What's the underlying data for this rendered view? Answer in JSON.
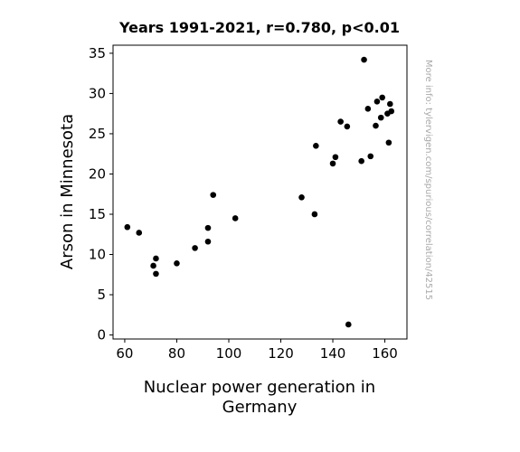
{
  "chart_data": {
    "type": "scatter",
    "title": "Years 1991-2021, r=0.780, p<0.01",
    "xlabel_lines": [
      "Nuclear power generation in",
      "Germany"
    ],
    "ylabel": "Arson in Minnesota",
    "side_note": "More info: tylervigen.com/spurious/correlation/42515",
    "xlim": [
      55.5,
      168.5
    ],
    "ylim": [
      -0.5,
      36
    ],
    "x_ticks": [
      60,
      80,
      100,
      120,
      140,
      160
    ],
    "y_ticks": [
      0,
      5,
      10,
      15,
      20,
      25,
      30,
      35
    ],
    "grid": false,
    "point_color": "#000000",
    "points": [
      {
        "x": 61.0,
        "y": 13.4
      },
      {
        "x": 65.5,
        "y": 12.7
      },
      {
        "x": 71.0,
        "y": 8.6
      },
      {
        "x": 72.0,
        "y": 9.5
      },
      {
        "x": 72.0,
        "y": 7.6
      },
      {
        "x": 80.0,
        "y": 8.9
      },
      {
        "x": 87.0,
        "y": 10.8
      },
      {
        "x": 92.0,
        "y": 11.6
      },
      {
        "x": 92.0,
        "y": 13.3
      },
      {
        "x": 94.0,
        "y": 17.4
      },
      {
        "x": 102.5,
        "y": 14.5
      },
      {
        "x": 128.0,
        "y": 17.1
      },
      {
        "x": 133.0,
        "y": 15.0
      },
      {
        "x": 133.5,
        "y": 23.5
      },
      {
        "x": 140.0,
        "y": 21.3
      },
      {
        "x": 141.0,
        "y": 22.1
      },
      {
        "x": 143.0,
        "y": 26.5
      },
      {
        "x": 145.5,
        "y": 25.9
      },
      {
        "x": 146.0,
        "y": 1.3
      },
      {
        "x": 151.0,
        "y": 21.6
      },
      {
        "x": 152.0,
        "y": 34.2
      },
      {
        "x": 153.5,
        "y": 28.1
      },
      {
        "x": 154.5,
        "y": 22.2
      },
      {
        "x": 156.5,
        "y": 26.0
      },
      {
        "x": 157.0,
        "y": 29.0
      },
      {
        "x": 158.5,
        "y": 27.0
      },
      {
        "x": 159.0,
        "y": 29.5
      },
      {
        "x": 161.0,
        "y": 27.5
      },
      {
        "x": 161.5,
        "y": 23.9
      },
      {
        "x": 162.0,
        "y": 28.7
      },
      {
        "x": 162.5,
        "y": 27.8
      }
    ]
  }
}
